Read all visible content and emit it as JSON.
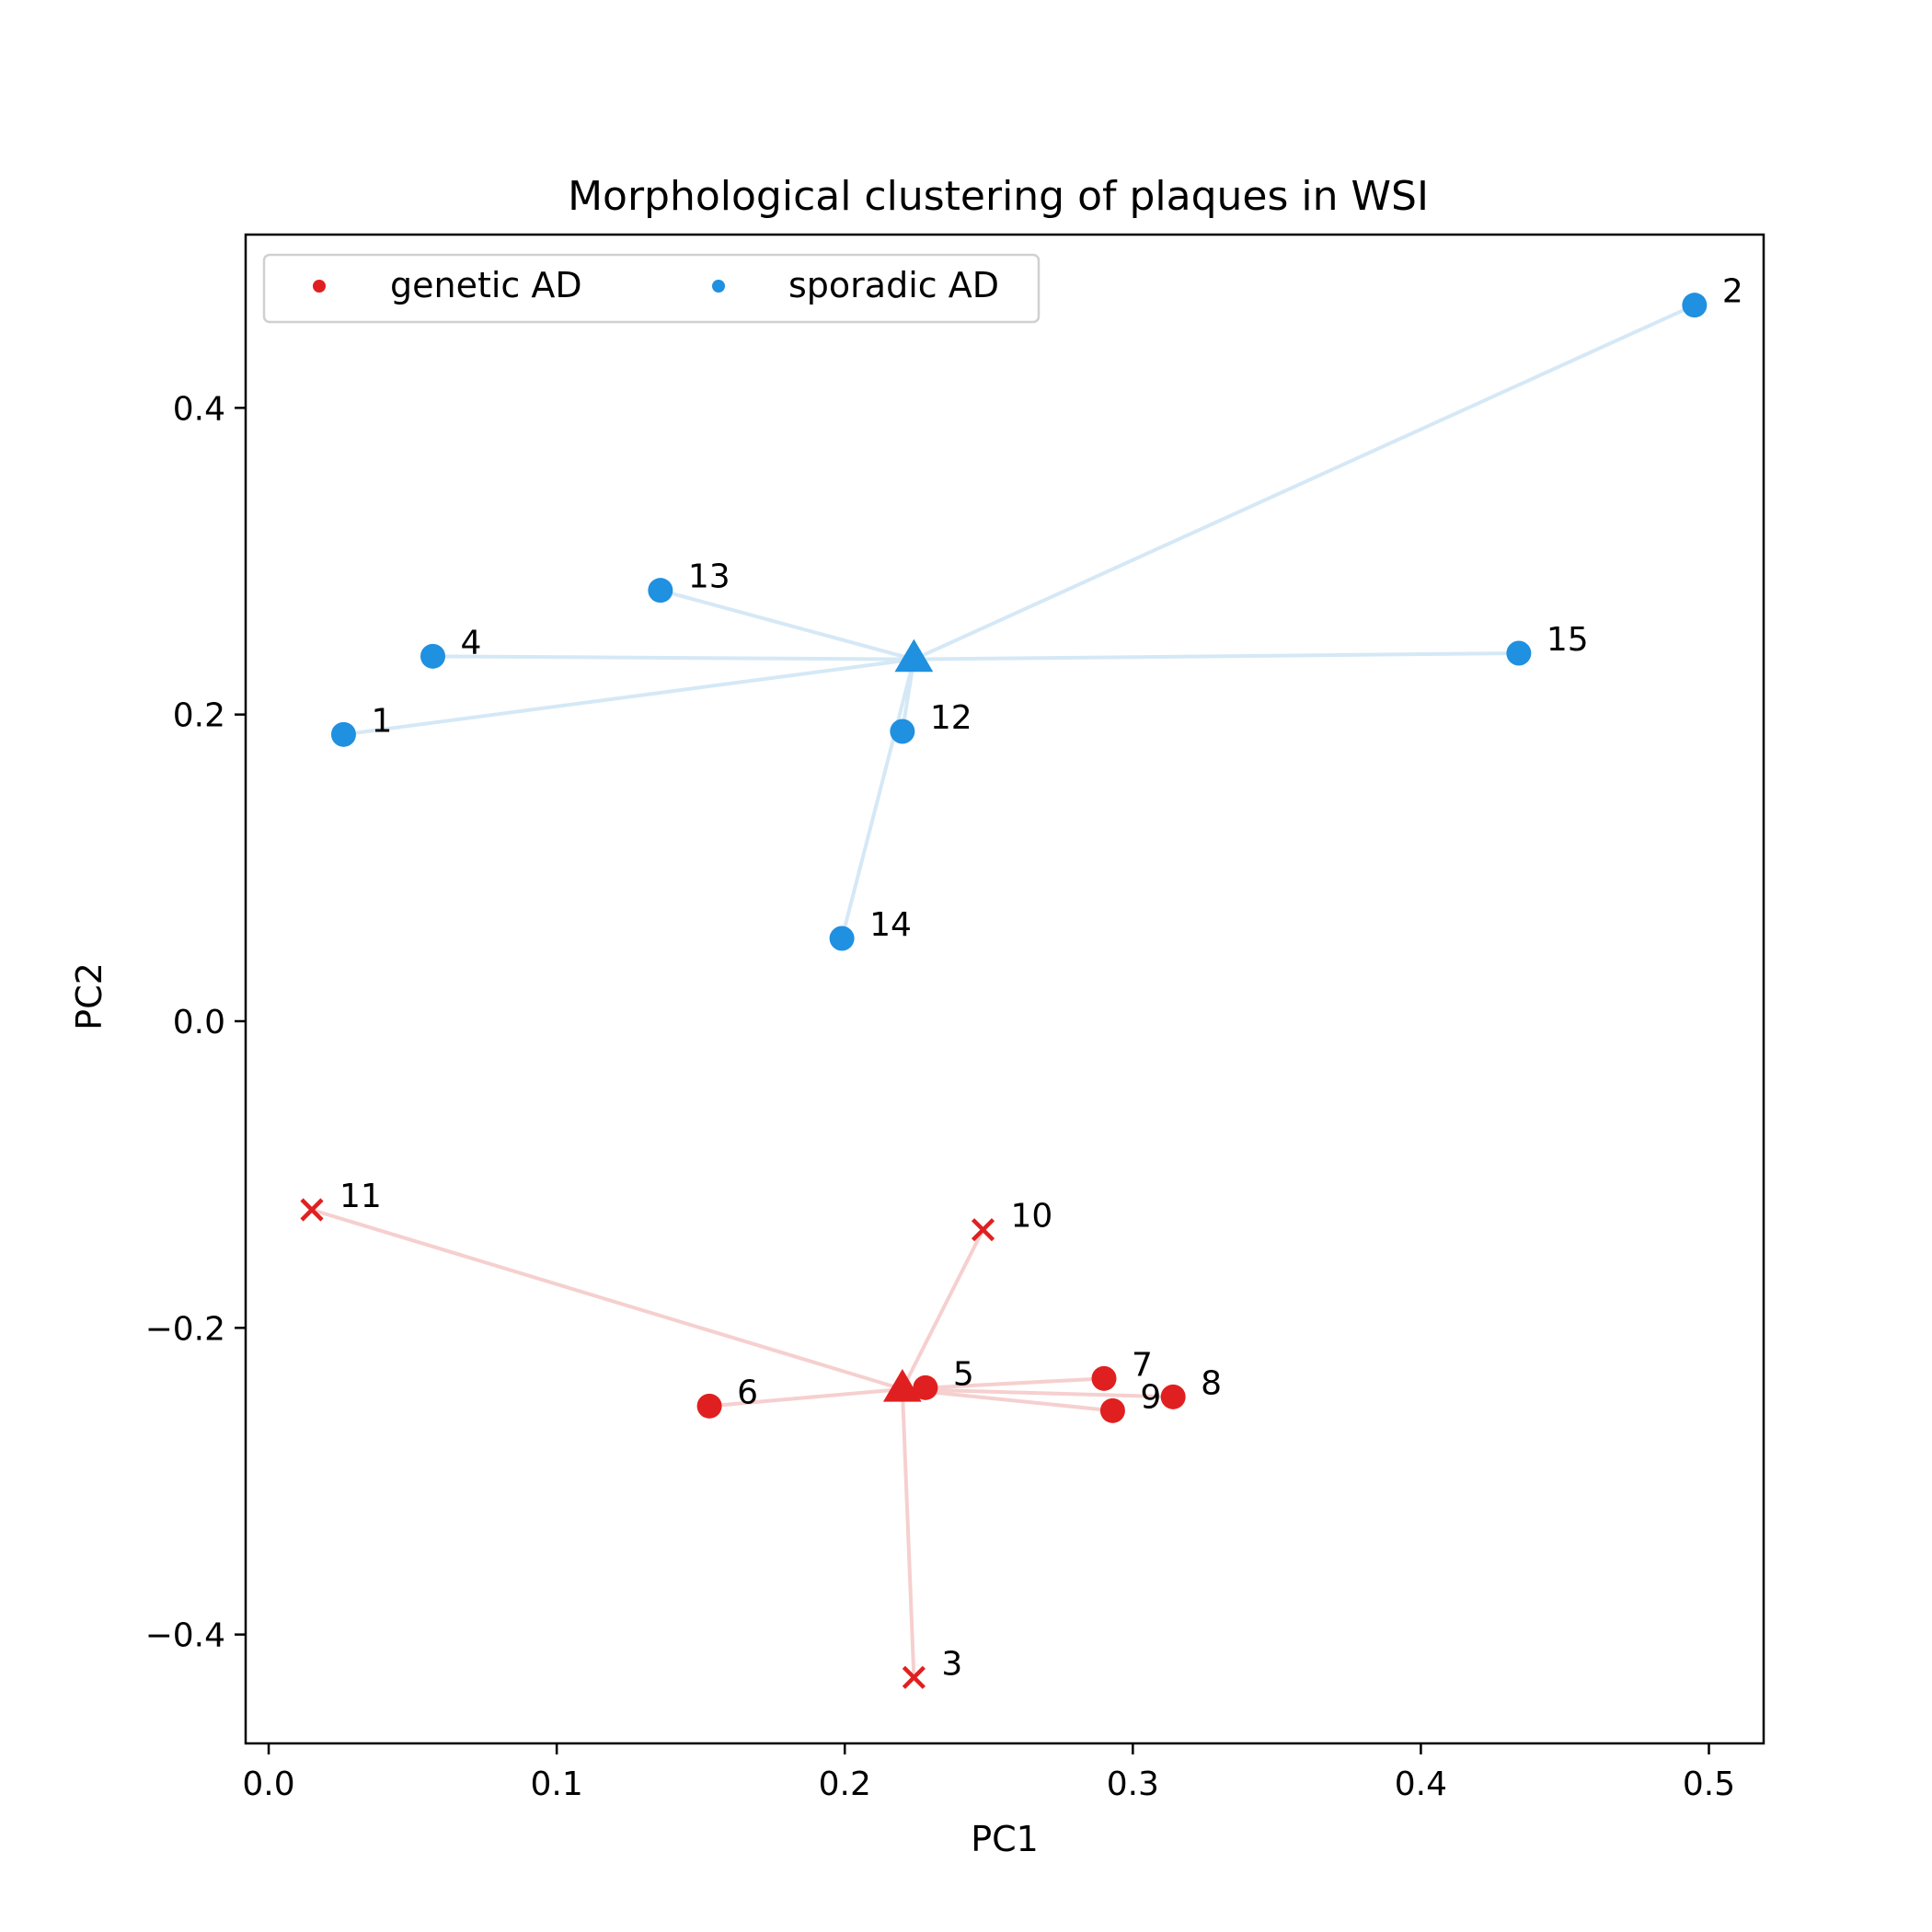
{
  "chart_data": {
    "type": "scatter",
    "title": "Morphological clustering of plaques in WSI",
    "xlabel": "PC1",
    "ylabel": "PC2",
    "xlim": [
      -0.008,
      0.519
    ],
    "ylim": [
      -0.471,
      0.513
    ],
    "xticks": [
      0.0,
      0.1,
      0.2,
      0.3,
      0.4,
      0.5
    ],
    "xtick_labels": [
      "0.0",
      "0.1",
      "0.2",
      "0.3",
      "0.4",
      "0.5"
    ],
    "yticks": [
      -0.4,
      -0.2,
      0.0,
      0.2,
      0.4
    ],
    "ytick_labels": [
      "−0.4",
      "−0.2",
      "0.0",
      "0.2",
      "0.4"
    ],
    "grid": false,
    "legend": {
      "placement": "top-left",
      "columns": 2,
      "entries": [
        {
          "label": "genetic AD",
          "color": "#e02020"
        },
        {
          "label": "sporadic AD",
          "color": "#2090e0"
        }
      ]
    },
    "series": [
      {
        "name": "genetic AD",
        "color": "#e02020",
        "line_color": "#f6cfcf",
        "centroid": {
          "x": 0.22,
          "y": -0.24
        },
        "points": [
          {
            "label": "3",
            "x": 0.224,
            "y": -0.428,
            "marker": "x"
          },
          {
            "label": "5",
            "x": 0.228,
            "y": -0.239,
            "marker": "circle"
          },
          {
            "label": "6",
            "x": 0.153,
            "y": -0.251,
            "marker": "circle"
          },
          {
            "label": "7",
            "x": 0.29,
            "y": -0.233,
            "marker": "circle"
          },
          {
            "label": "8",
            "x": 0.314,
            "y": -0.245,
            "marker": "circle"
          },
          {
            "label": "9",
            "x": 0.293,
            "y": -0.254,
            "marker": "circle"
          },
          {
            "label": "10",
            "x": 0.248,
            "y": -0.136,
            "marker": "x"
          },
          {
            "label": "11",
            "x": 0.015,
            "y": -0.123,
            "marker": "x"
          }
        ]
      },
      {
        "name": "sporadic AD",
        "color": "#2090e0",
        "line_color": "#d5e8f6",
        "centroid": {
          "x": 0.224,
          "y": 0.236
        },
        "points": [
          {
            "label": "1",
            "x": 0.026,
            "y": 0.187,
            "marker": "circle"
          },
          {
            "label": "2",
            "x": 0.495,
            "y": 0.467,
            "marker": "circle"
          },
          {
            "label": "4",
            "x": 0.057,
            "y": 0.238,
            "marker": "circle"
          },
          {
            "label": "12",
            "x": 0.22,
            "y": 0.189,
            "marker": "circle"
          },
          {
            "label": "13",
            "x": 0.136,
            "y": 0.281,
            "marker": "circle"
          },
          {
            "label": "14",
            "x": 0.199,
            "y": 0.054,
            "marker": "circle"
          },
          {
            "label": "15",
            "x": 0.434,
            "y": 0.24,
            "marker": "circle"
          }
        ]
      }
    ]
  }
}
